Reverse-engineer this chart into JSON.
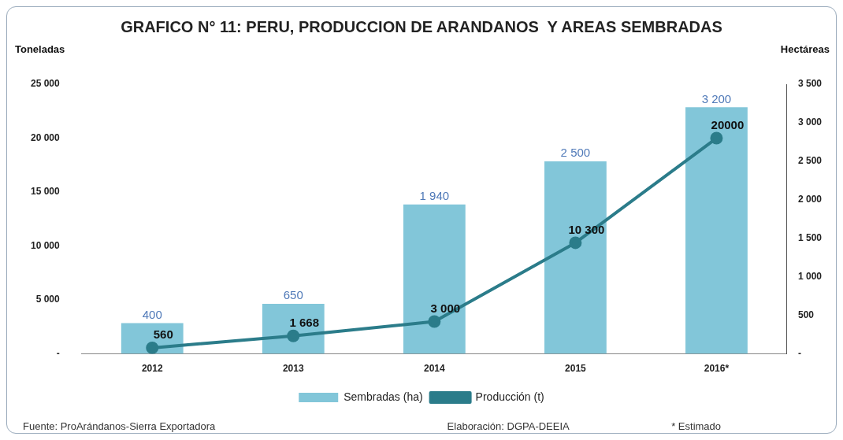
{
  "chart_data": {
    "type": "bar",
    "title": "GRAFICO N° 11: PERU, PRODUCCION DE ARANDANOS  Y AREAS SEMBRADAS",
    "ylabel": "Toneladas",
    "y2label": "Hectáreas",
    "categories": [
      "2012",
      "2013",
      "2014",
      "2015",
      "2016*"
    ],
    "series": [
      {
        "name": "Sembradas (ha)",
        "axis": "y2",
        "color": "#82c6d9",
        "values": [
          400,
          650,
          1940,
          2500,
          3200
        ],
        "value_labels": [
          "400",
          "650",
          "1 940",
          "2 500",
          "3 200"
        ]
      },
      {
        "name": "Producción (t)",
        "type": "line",
        "axis": "y",
        "color": "#2b7c8a",
        "values": [
          560,
          1668,
          3000,
          10300,
          20000
        ],
        "value_labels": [
          "560",
          "1 668",
          "3 000",
          "10 300",
          "20000"
        ]
      }
    ],
    "ylim": [
      0,
      25000
    ],
    "yticks": [
      {
        "value": 0,
        "label": "-"
      },
      {
        "value": 5000,
        "label": "5 000"
      },
      {
        "value": 10000,
        "label": "10 000"
      },
      {
        "value": 15000,
        "label": "15 000"
      },
      {
        "value": 20000,
        "label": "20 000"
      },
      {
        "value": 25000,
        "label": "25 000"
      }
    ],
    "y2lim": [
      0,
      3500
    ],
    "y2ticks": [
      {
        "value": 0,
        "label": "-"
      },
      500,
      {
        "value": 1000,
        "label": "1 000"
      },
      {
        "value": 1500,
        "label": "1 500"
      },
      {
        "value": 2000,
        "label": "2 000"
      },
      {
        "value": 2500,
        "label": "2 500"
      },
      {
        "value": 3000,
        "label": "3 000"
      },
      {
        "value": 3500,
        "label": "3 500"
      }
    ],
    "grid": false,
    "legend": "bottom",
    "marker": "circle",
    "line_style": "solid",
    "annotations": [
      "Fuente: ProArándanos-Sierra Exportadora",
      "Elaboración: DGPA-DEEIA",
      "* Estimado"
    ]
  }
}
